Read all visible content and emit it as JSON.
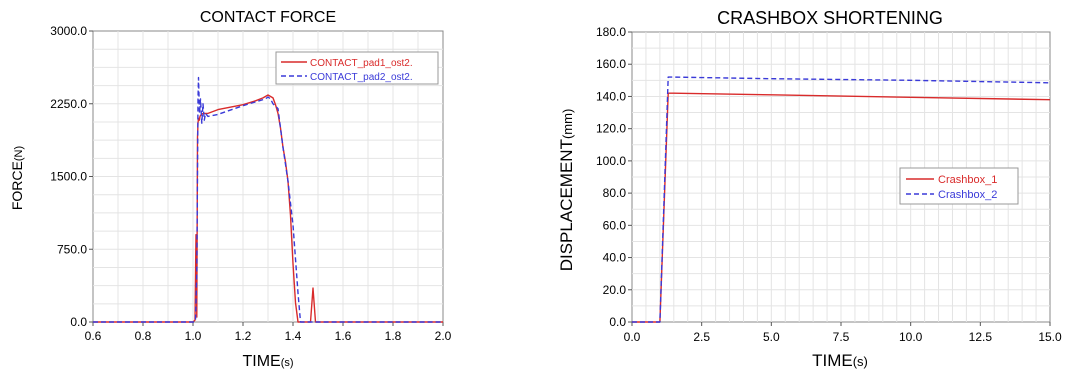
{
  "chart_data": [
    {
      "type": "line",
      "title": "CONTACT FORCE",
      "xlabel": "TIME",
      "xlabel_unit": "(s)",
      "ylabel": "FORCE",
      "ylabel_unit": "(N)",
      "xlim": [
        0.6,
        2.0
      ],
      "ylim": [
        0,
        3000
      ],
      "xticks": [
        "0.6",
        "0.8",
        "1.0",
        "1.2",
        "1.4",
        "1.6",
        "1.8",
        "2.0"
      ],
      "yticks": [
        "0.0",
        "750.0",
        "1500.0",
        "2250.0",
        "3000.0"
      ],
      "grid": true,
      "legend_position": "top-right",
      "series": [
        {
          "name": "CONTACT_pad1_ost2.",
          "color": "#d92b2b",
          "dash": "solid",
          "x": [
            0.6,
            1.0,
            1.008,
            1.012,
            1.015,
            1.018,
            1.02,
            1.022,
            1.025,
            1.028,
            1.03,
            1.04,
            1.06,
            1.1,
            1.2,
            1.25,
            1.28,
            1.3,
            1.32,
            1.33,
            1.34,
            1.35,
            1.36,
            1.37,
            1.38,
            1.39,
            1.4,
            1.41,
            1.42,
            1.43,
            1.47,
            1.48,
            1.49,
            1.5,
            2.0
          ],
          "y": [
            0,
            0,
            20,
            900,
            50,
            1900,
            2050,
            2100,
            2080,
            2120,
            2130,
            2150,
            2150,
            2190,
            2240,
            2280,
            2310,
            2340,
            2310,
            2240,
            2150,
            2000,
            1800,
            1650,
            1450,
            1100,
            600,
            200,
            0,
            0,
            0,
            350,
            0,
            0,
            0
          ]
        },
        {
          "name": "CONTACT_pad2_ost2.",
          "color": "#3a3ad8",
          "dash": "dashed",
          "x": [
            0.6,
            1.005,
            1.01,
            1.015,
            1.02,
            1.022,
            1.026,
            1.03,
            1.035,
            1.04,
            1.045,
            1.05,
            1.06,
            1.08,
            1.1,
            1.2,
            1.29,
            1.3,
            1.31,
            1.32,
            1.34,
            1.36,
            1.38,
            1.4,
            1.42,
            1.43,
            1.45,
            1.5,
            2.0
          ],
          "y": [
            0,
            0,
            30,
            500,
            2300,
            2520,
            2150,
            2300,
            2050,
            2250,
            2080,
            2150,
            2120,
            2130,
            2140,
            2230,
            2300,
            2320,
            2300,
            2250,
            2200,
            1800,
            1450,
            1000,
            300,
            0,
            0,
            0,
            0
          ]
        }
      ]
    },
    {
      "type": "line",
      "title": "CRASHBOX SHORTENING",
      "xlabel": "TIME",
      "xlabel_unit": "(s)",
      "ylabel": "DISPLACEMENT",
      "ylabel_unit": "(mm)",
      "xlim": [
        0,
        15
      ],
      "ylim": [
        0,
        180
      ],
      "xticks": [
        "0.0",
        "2.5",
        "5.0",
        "7.5",
        "10.0",
        "12.5",
        "15.0"
      ],
      "yticks": [
        "0.0",
        "20.0",
        "40.0",
        "60.0",
        "80.0",
        "100.0",
        "120.0",
        "140.0",
        "160.0",
        "180.0"
      ],
      "grid": true,
      "legend_position": "right",
      "series": [
        {
          "name": "Crashbox_1",
          "color": "#d92b2b",
          "dash": "solid",
          "x": [
            0,
            1.0,
            1.3,
            1.5,
            5,
            10,
            15
          ],
          "y": [
            0,
            0,
            142,
            142,
            141,
            139.5,
            138
          ]
        },
        {
          "name": "Crashbox_2",
          "color": "#3a3ad8",
          "dash": "dashed",
          "x": [
            0,
            1.0,
            1.3,
            1.5,
            5,
            10,
            15
          ],
          "y": [
            0,
            0,
            152,
            152,
            151,
            150,
            148.5
          ]
        }
      ]
    }
  ]
}
